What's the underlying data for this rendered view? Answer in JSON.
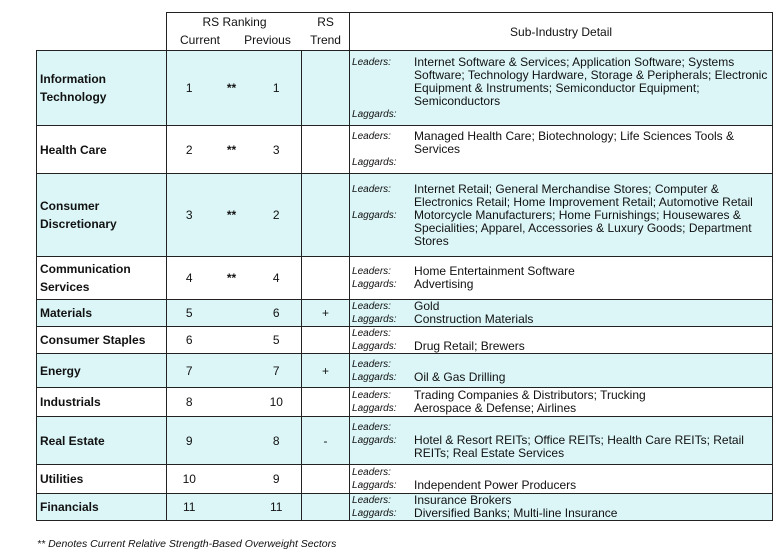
{
  "header": {
    "rs_ranking": "RS Ranking",
    "rs": "RS",
    "current": "Current",
    "previous": "Previous",
    "trend": "Trend",
    "detail": "Sub-Industry Detail",
    "leaders_label": "Leaders:",
    "laggards_label": "Laggards:"
  },
  "rows": [
    {
      "sector": "Information Technology",
      "current": "1",
      "star": "**",
      "previous": "1",
      "trend": "",
      "leaders": "Internet Software & Services; Application Software; Systems Software; Technology Hardware, Storage & Peripherals; Electronic Equipment & Instruments; Semiconductor Equipment; Semiconductors",
      "laggards": ""
    },
    {
      "sector": "Health Care",
      "current": "2",
      "star": "**",
      "previous": "3",
      "trend": "",
      "leaders": "Managed Health Care; Biotechnology; Life Sciences Tools & Services",
      "laggards": ""
    },
    {
      "sector": "Consumer Discretionary",
      "current": "3",
      "star": "**",
      "previous": "2",
      "trend": "",
      "leaders": "Internet Retail; General Merchandise Stores; Computer & Electronics Retail; Home Improvement Retail; Automotive Retail",
      "laggards": "Motorcycle Manufacturers; Home Furnishings; Housewares & Specialities; Apparel, Accessories & Luxury Goods; Department Stores"
    },
    {
      "sector": "Communication Services",
      "current": "4",
      "star": "**",
      "previous": "4",
      "trend": "",
      "leaders": "Home Entertainment Software",
      "laggards": "Advertising"
    },
    {
      "sector": "Materials",
      "current": "5",
      "star": "",
      "previous": "6",
      "trend": "+",
      "leaders": "Gold",
      "laggards": "Construction Materials"
    },
    {
      "sector": "Consumer Staples",
      "current": "6",
      "star": "",
      "previous": "5",
      "trend": "",
      "leaders": "",
      "laggards": "Drug Retail; Brewers"
    },
    {
      "sector": "Energy",
      "current": "7",
      "star": "",
      "previous": "7",
      "trend": "+",
      "leaders": "",
      "laggards": "Oil & Gas Drilling"
    },
    {
      "sector": "Industrials",
      "current": "8",
      "star": "",
      "previous": "10",
      "trend": "",
      "leaders": "Trading Companies & Distributors; Trucking",
      "laggards": "Aerospace & Defense; Airlines"
    },
    {
      "sector": "Real Estate",
      "current": "9",
      "star": "",
      "previous": "8",
      "trend": "-",
      "leaders": "",
      "laggards": "Hotel & Resort REITs; Office REITs; Health Care REITs; Retail REITs; Real Estate Services"
    },
    {
      "sector": "Utilities",
      "current": "10",
      "star": "",
      "previous": "9",
      "trend": "",
      "leaders": "",
      "laggards": "Independent Power Producers"
    },
    {
      "sector": "Financials",
      "current": "11",
      "star": "",
      "previous": "11",
      "trend": "",
      "leaders": "Insurance Brokers",
      "laggards": "Diversified Banks; Multi-line Insurance"
    }
  ],
  "footnote": "** Denotes Current Relative Strength-Based Overweight Sectors",
  "colors": {
    "shade": "#dcf6f8",
    "white": "#ffffff",
    "border": "#222222"
  }
}
